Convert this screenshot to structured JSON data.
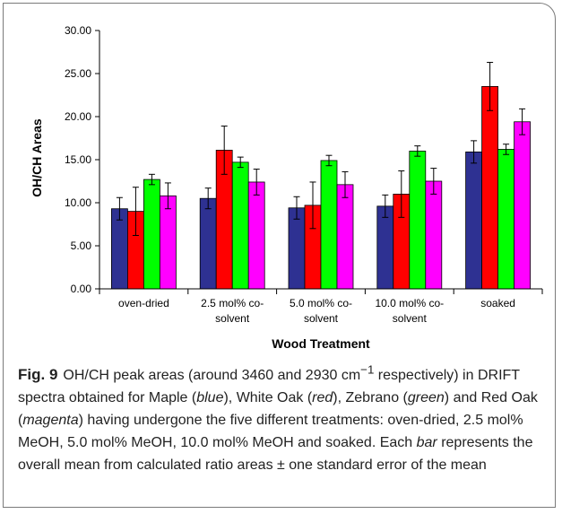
{
  "chart_data": {
    "type": "bar",
    "categories": [
      [
        "oven-dried"
      ],
      [
        "2.5 mol% co-",
        "solvent"
      ],
      [
        "5.0 mol% co-",
        "solvent"
      ],
      [
        "10.0 mol% co-",
        "solvent"
      ],
      [
        "soaked"
      ]
    ],
    "series": [
      {
        "values": [
          9.3,
          10.5,
          9.4,
          9.6,
          15.9
        ],
        "errors": [
          1.3,
          1.2,
          1.3,
          1.3,
          1.3
        ],
        "color": "#2e3192"
      },
      {
        "values": [
          9.0,
          16.1,
          9.7,
          11.0,
          23.5
        ],
        "errors": [
          2.8,
          2.8,
          2.7,
          2.7,
          2.8
        ],
        "color": "#ff0000"
      },
      {
        "values": [
          12.7,
          14.7,
          14.9,
          16.0,
          16.2
        ],
        "errors": [
          0.6,
          0.6,
          0.6,
          0.6,
          0.6
        ],
        "color": "#00ff00"
      },
      {
        "values": [
          10.8,
          12.4,
          12.1,
          12.5,
          19.4
        ],
        "errors": [
          1.5,
          1.5,
          1.5,
          1.5,
          1.5
        ],
        "color": "#ff00ff"
      }
    ],
    "ylabel": "OH/CH Areas",
    "xlabel": "Wood Treatment",
    "ylim": [
      0,
      30
    ],
    "yticks": [
      "0.00",
      "5.00",
      "10.00",
      "15.00",
      "20.00",
      "25.00",
      "30.00"
    ],
    "grid": false,
    "legend": "none"
  },
  "caption": {
    "label": "Fig. 9",
    "parts": [
      {
        "t": "OH/CH peak areas (around 3460 and 2930 cm"
      },
      {
        "t": "−1",
        "sup": true
      },
      {
        "t": " respectively) in DRIFT spectra obtained for Maple ("
      },
      {
        "t": "blue",
        "i": true
      },
      {
        "t": "), White Oak ("
      },
      {
        "t": "red",
        "i": true
      },
      {
        "t": "), Zebrano ("
      },
      {
        "t": "green",
        "i": true
      },
      {
        "t": ") and Red Oak ("
      },
      {
        "t": "magenta",
        "i": true
      },
      {
        "t": ") having undergone the five different treatments: oven-dried, 2.5 mol% MeOH, 5.0 mol% MeOH, 10.0 mol% MeOH and soaked. Each "
      },
      {
        "t": "bar",
        "i": true
      },
      {
        "t": " represents the overall mean from calculated ratio areas ± one standard error of the mean"
      }
    ]
  }
}
